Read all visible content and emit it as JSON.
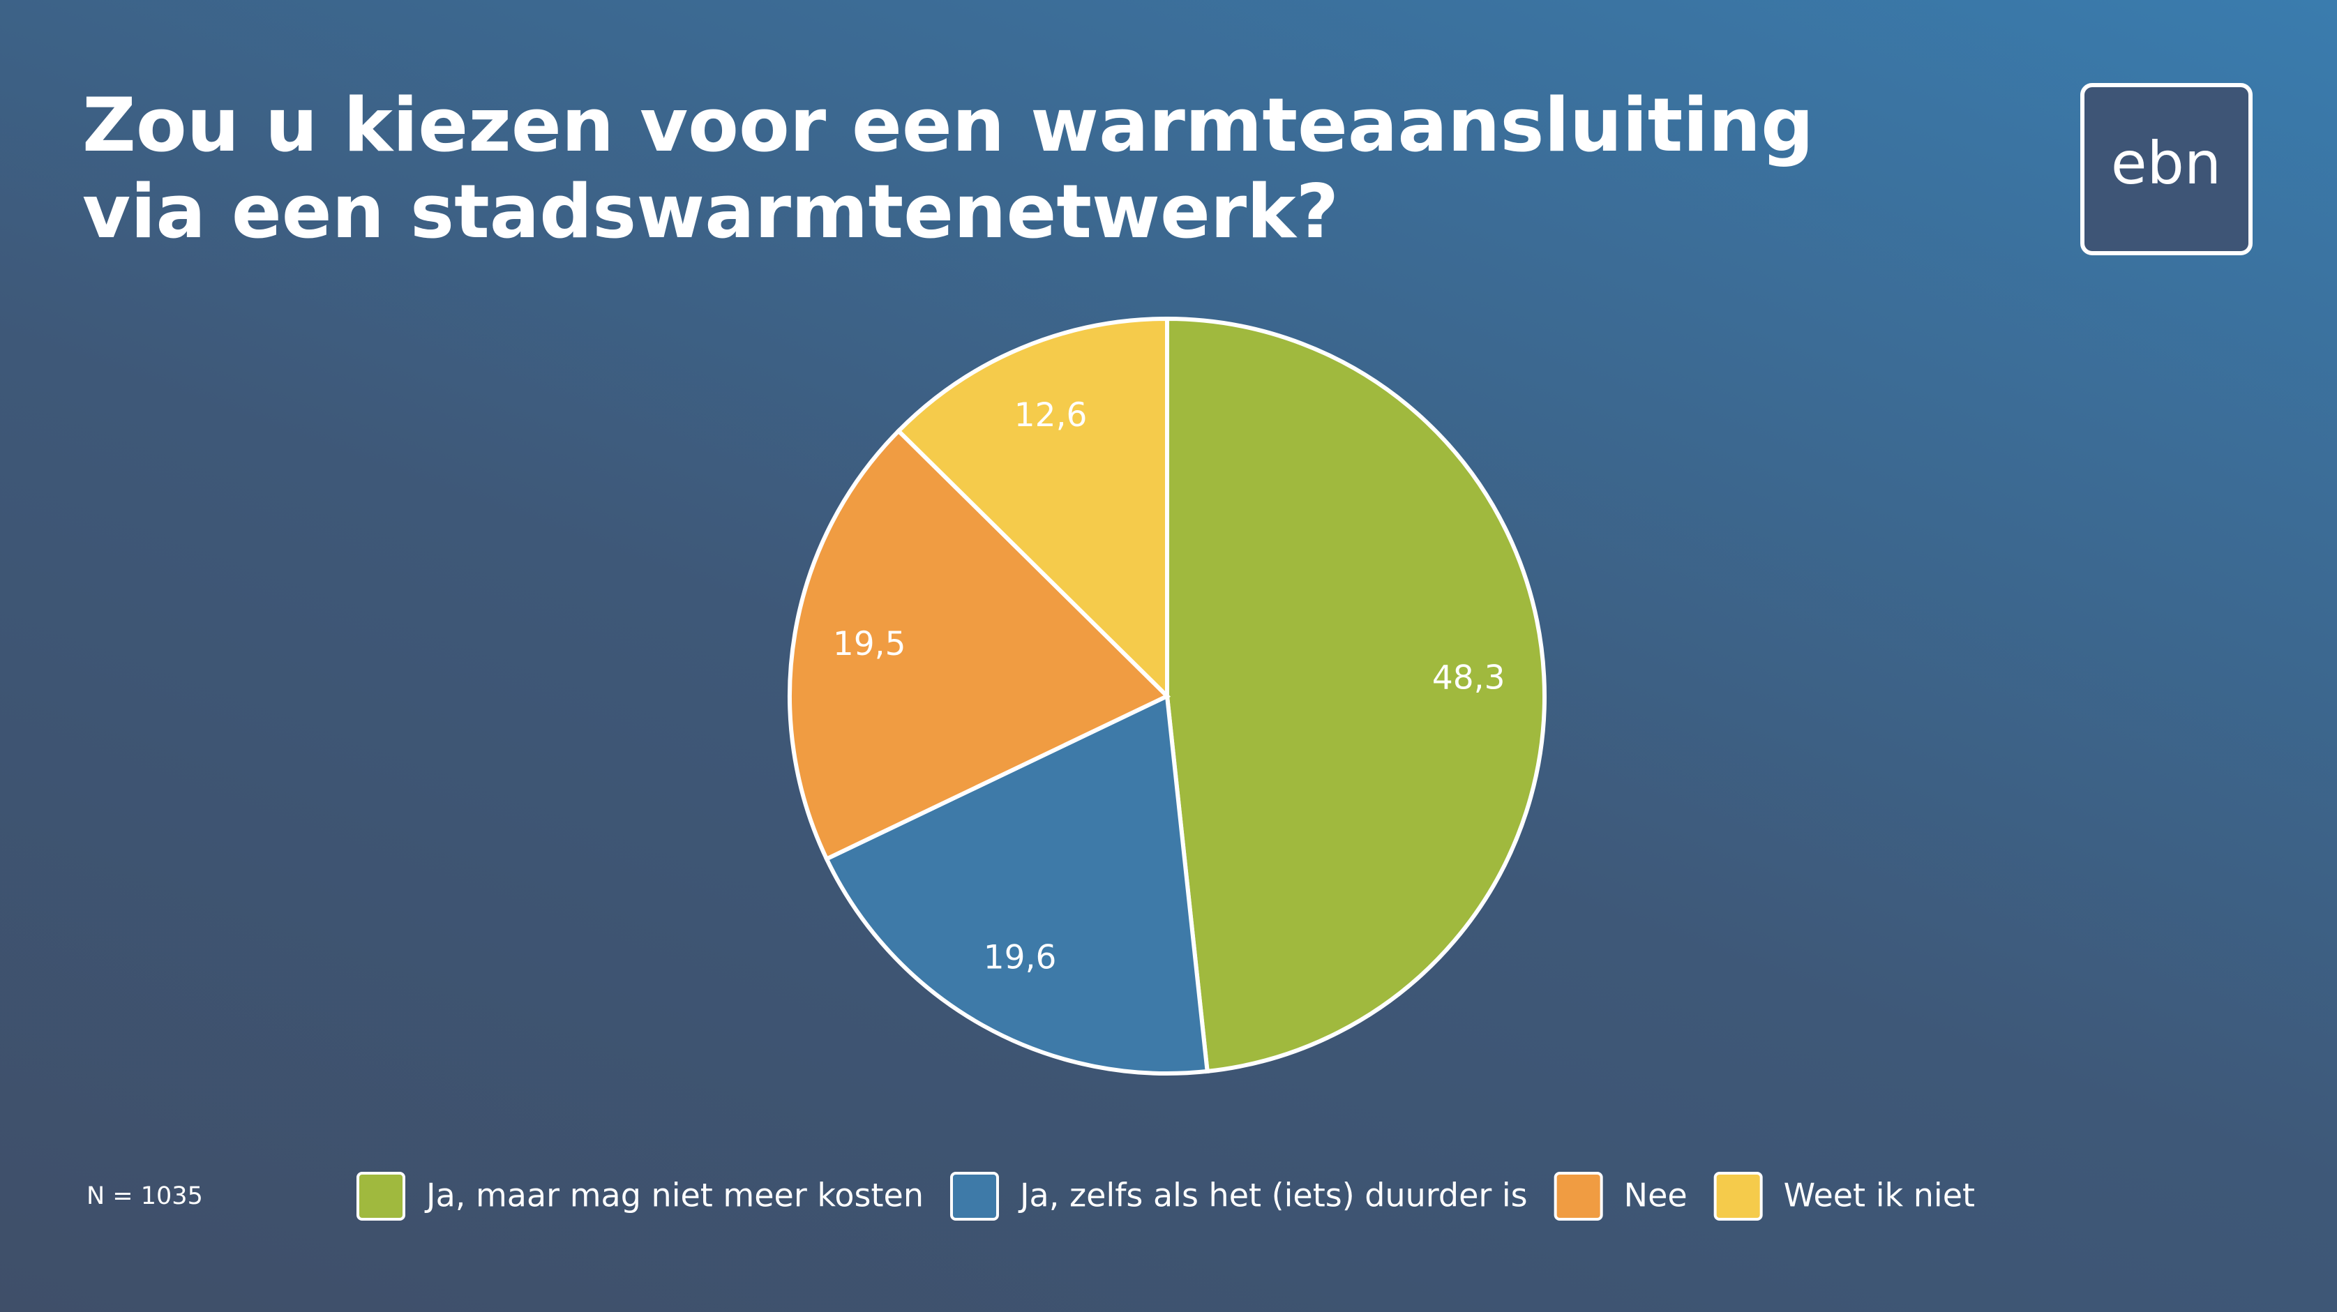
{
  "chart_data": {
    "type": "pie",
    "title": "Zou u kiezen voor een warmteaansluiting via een stadswarmtenetwerk?",
    "categories": [
      "Ja, maar mag niet meer kosten",
      "Ja, zelfs als het (iets) duurder is",
      "Nee",
      "Weet ik niet"
    ],
    "values": [
      48.3,
      19.6,
      19.5,
      12.6
    ],
    "value_labels": [
      "48,3",
      "19,6",
      "19,5",
      "12,6"
    ],
    "colors": [
      "#a0b93e",
      "#3e7aa8",
      "#f09c42",
      "#f5cb4b"
    ],
    "note": "N = 1035",
    "legend": "bottom"
  },
  "logo": "ebn"
}
